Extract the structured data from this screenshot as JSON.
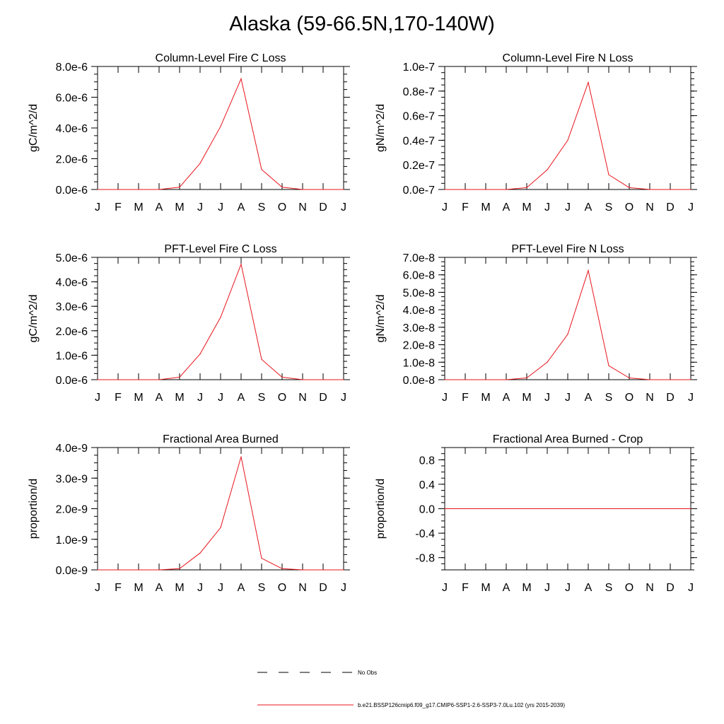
{
  "page": {
    "title": "Alaska (59-66.5N,170-140W)"
  },
  "legend": {
    "items": [
      {
        "label": "No Obs",
        "color": "#000000",
        "style": "dashed"
      },
      {
        "label": "b.e21.BSSP126cmip6.f09_g17.CMIP6-SSP1-2.6-SSP3-7.0Lu.102 (yrs 2015-2039)",
        "color": "#e8141c",
        "style": "solid"
      }
    ]
  },
  "chart_data": [
    {
      "type": "line",
      "title": "Column-Level Fire C Loss",
      "ylabel": "gC/m^2/d",
      "categories": [
        "J",
        "F",
        "M",
        "A",
        "M",
        "J",
        "J",
        "A",
        "S",
        "O",
        "N",
        "D",
        "J"
      ],
      "ylim": [
        0,
        8e-06
      ],
      "yticks": [
        0,
        2e-06,
        4e-06,
        6e-06,
        8e-06
      ],
      "ytick_labels": [
        "0.0e-6",
        "2.0e-6",
        "4.0e-6",
        "6.0e-6",
        "8.0e-6"
      ],
      "series": [
        {
          "color": "#e8141c",
          "values": [
            0,
            0,
            0,
            0,
            1.5e-07,
            1.7e-06,
            4.1e-06,
            7.2e-06,
            1.3e-06,
            1.5e-07,
            0,
            0,
            0
          ]
        }
      ]
    },
    {
      "type": "line",
      "title": "Column-Level Fire N Loss",
      "ylabel": "gN/m^2/d",
      "categories": [
        "J",
        "F",
        "M",
        "A",
        "M",
        "J",
        "J",
        "A",
        "S",
        "O",
        "N",
        "D",
        "J"
      ],
      "ylim": [
        0,
        1e-07
      ],
      "yticks": [
        0,
        2e-08,
        4e-08,
        6e-08,
        8e-08,
        1e-07
      ],
      "ytick_labels": [
        "0.0e-7",
        "0.2e-7",
        "0.4e-7",
        "0.6e-7",
        "0.8e-7",
        "1.0e-7"
      ],
      "series": [
        {
          "color": "#e8141c",
          "values": [
            0,
            0,
            0,
            0,
            1.5e-09,
            1.6e-08,
            4e-08,
            8.7e-08,
            1.2e-08,
            1.5e-09,
            0,
            0,
            0
          ]
        }
      ]
    },
    {
      "type": "line",
      "title": "PFT-Level Fire C Loss",
      "ylabel": "gC/m^2/d",
      "categories": [
        "J",
        "F",
        "M",
        "A",
        "M",
        "J",
        "J",
        "A",
        "S",
        "O",
        "N",
        "D",
        "J"
      ],
      "ylim": [
        0,
        5e-06
      ],
      "yticks": [
        0,
        1e-06,
        2e-06,
        3e-06,
        4e-06,
        5e-06
      ],
      "ytick_labels": [
        "0.0e-6",
        "1.0e-6",
        "2.0e-6",
        "3.0e-6",
        "4.0e-6",
        "5.0e-6"
      ],
      "series": [
        {
          "color": "#e8141c",
          "values": [
            0,
            0,
            0,
            0,
            1e-07,
            1.05e-06,
            2.55e-06,
            4.72e-06,
            8.3e-07,
            1e-07,
            0,
            0,
            0
          ]
        }
      ]
    },
    {
      "type": "line",
      "title": "PFT-Level Fire N Loss",
      "ylabel": "gN/m^2/d",
      "categories": [
        "J",
        "F",
        "M",
        "A",
        "M",
        "J",
        "J",
        "A",
        "S",
        "O",
        "N",
        "D",
        "J"
      ],
      "ylim": [
        0,
        7e-08
      ],
      "yticks": [
        0,
        1e-08,
        2e-08,
        3e-08,
        4e-08,
        5e-08,
        6e-08,
        7e-08
      ],
      "ytick_labels": [
        "0.0e-8",
        "1.0e-8",
        "2.0e-8",
        "3.0e-8",
        "4.0e-8",
        "5.0e-8",
        "6.0e-8",
        "7.0e-8"
      ],
      "series": [
        {
          "color": "#e8141c",
          "values": [
            0,
            0,
            0,
            0,
            1e-09,
            1e-08,
            2.6e-08,
            6.25e-08,
            8e-09,
            1e-09,
            0,
            0,
            0
          ]
        }
      ]
    },
    {
      "type": "line",
      "title": "Fractional Area Burned",
      "ylabel": "proportion/d",
      "categories": [
        "J",
        "F",
        "M",
        "A",
        "M",
        "J",
        "J",
        "A",
        "S",
        "O",
        "N",
        "D",
        "J"
      ],
      "ylim": [
        0,
        4e-09
      ],
      "yticks": [
        0,
        1e-09,
        2e-09,
        3e-09,
        4e-09
      ],
      "ytick_labels": [
        "0.0e-9",
        "1.0e-9",
        "2.0e-9",
        "3.0e-9",
        "4.0e-9"
      ],
      "series": [
        {
          "color": "#e8141c",
          "values": [
            0,
            0,
            0,
            0,
            4e-11,
            5.5e-10,
            1.38e-09,
            3.7e-09,
            3.8e-10,
            4e-11,
            0,
            0,
            0
          ]
        }
      ]
    },
    {
      "type": "line",
      "title": "Fractional Area Burned - Crop",
      "ylabel": "proportion/d",
      "categories": [
        "J",
        "F",
        "M",
        "A",
        "M",
        "J",
        "J",
        "A",
        "S",
        "O",
        "N",
        "D",
        "J"
      ],
      "ylim": [
        -1.0,
        1.0
      ],
      "yticks": [
        -0.8,
        -0.4,
        0.0,
        0.4,
        0.8
      ],
      "ytick_labels": [
        "-0.8",
        "-0.4",
        "0.0",
        "0.4",
        "0.8"
      ],
      "series": [
        {
          "color": "#e8141c",
          "values": [
            0,
            0,
            0,
            0,
            0,
            0,
            0,
            0,
            0,
            0,
            0,
            0,
            0
          ]
        }
      ]
    }
  ]
}
